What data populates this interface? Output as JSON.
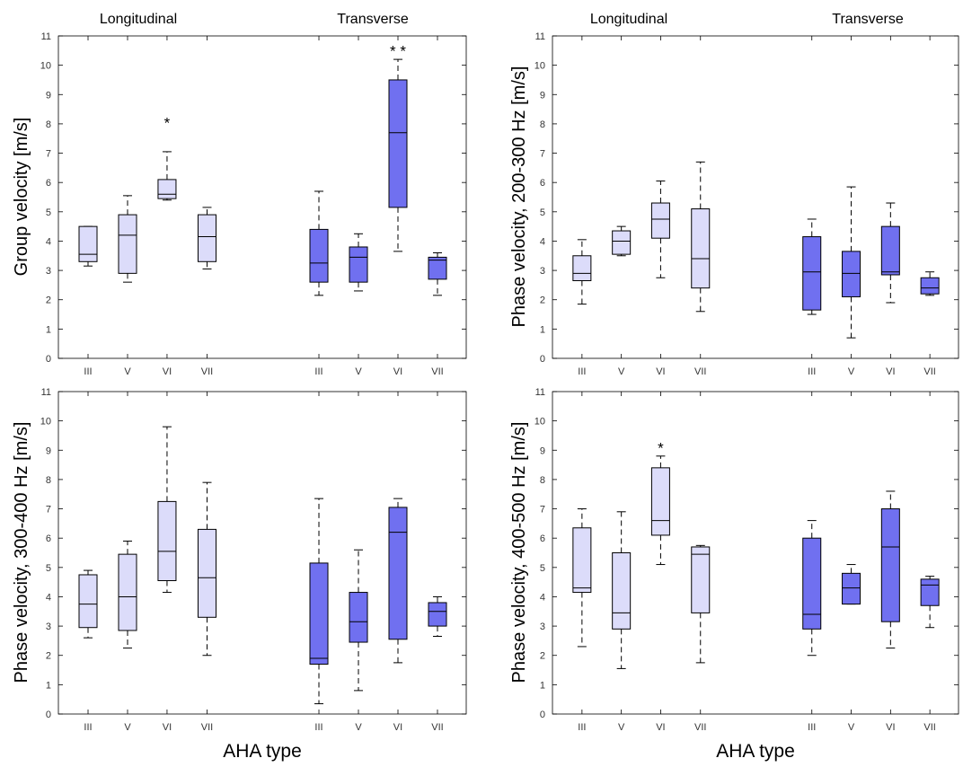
{
  "figure": {
    "group_labels": [
      "Longitudinal",
      "Transverse"
    ],
    "colors": {
      "longitudinal_fill": "#dcdcfa",
      "transverse_fill": "#7070f0",
      "stroke": "#000000"
    }
  },
  "chart_data": [
    {
      "type": "box",
      "ylabel": "Group velocity [m/s]",
      "xlabel": "",
      "ylim": [
        0,
        11
      ],
      "yticks": [
        0,
        1,
        2,
        3,
        4,
        5,
        6,
        7,
        8,
        9,
        10,
        11
      ],
      "categories": [
        "III",
        "V",
        "VI",
        "VII",
        "III",
        "V",
        "VI",
        "VII"
      ],
      "groups": [
        "Longitudinal",
        "Longitudinal",
        "Longitudinal",
        "Longitudinal",
        "Transverse",
        "Transverse",
        "Transverse",
        "Transverse"
      ],
      "boxes": [
        {
          "min": 3.15,
          "q1": 3.3,
          "median": 3.55,
          "q3": 4.5,
          "max": 4.5
        },
        {
          "min": 2.6,
          "q1": 2.9,
          "median": 4.2,
          "q3": 4.9,
          "max": 5.55
        },
        {
          "min": 5.4,
          "q1": 5.45,
          "median": 5.6,
          "q3": 6.1,
          "max": 7.05
        },
        {
          "min": 3.05,
          "q1": 3.3,
          "median": 4.15,
          "q3": 4.9,
          "max": 5.15
        },
        {
          "min": 2.15,
          "q1": 2.6,
          "median": 3.25,
          "q3": 4.4,
          "max": 5.7
        },
        {
          "min": 2.3,
          "q1": 2.6,
          "median": 3.45,
          "q3": 3.8,
          "max": 4.25
        },
        {
          "min": 3.65,
          "q1": 5.15,
          "median": 7.7,
          "q3": 9.5,
          "max": 10.2
        },
        {
          "min": 2.15,
          "q1": 2.7,
          "median": 3.35,
          "q3": 3.45,
          "max": 3.6
        }
      ],
      "annotations": [
        {
          "text": "*",
          "index": 2,
          "y": 8.1
        },
        {
          "text": "* *",
          "index": 6,
          "y": 10.55
        }
      ]
    },
    {
      "type": "box",
      "ylabel": "Phase velocity, 200-300 Hz [m/s]",
      "xlabel": "",
      "ylim": [
        0,
        11
      ],
      "yticks": [
        0,
        1,
        2,
        3,
        4,
        5,
        6,
        7,
        8,
        9,
        10,
        11
      ],
      "categories": [
        "III",
        "V",
        "VI",
        "VII",
        "III",
        "V",
        "VI",
        "VII"
      ],
      "groups": [
        "Longitudinal",
        "Longitudinal",
        "Longitudinal",
        "Longitudinal",
        "Transverse",
        "Transverse",
        "Transverse",
        "Transverse"
      ],
      "boxes": [
        {
          "min": 1.85,
          "q1": 2.65,
          "median": 2.9,
          "q3": 3.5,
          "max": 4.05
        },
        {
          "min": 3.5,
          "q1": 3.55,
          "median": 4.0,
          "q3": 4.35,
          "max": 4.5
        },
        {
          "min": 2.75,
          "q1": 4.1,
          "median": 4.75,
          "q3": 5.3,
          "max": 6.05
        },
        {
          "min": 1.6,
          "q1": 2.4,
          "median": 3.4,
          "q3": 5.1,
          "max": 6.7
        },
        {
          "min": 1.5,
          "q1": 1.65,
          "median": 2.95,
          "q3": 4.15,
          "max": 4.75
        },
        {
          "min": 0.7,
          "q1": 2.1,
          "median": 2.9,
          "q3": 3.65,
          "max": 5.85
        },
        {
          "min": 1.9,
          "q1": 2.85,
          "median": 2.95,
          "q3": 4.5,
          "max": 5.3
        },
        {
          "min": 2.15,
          "q1": 2.2,
          "median": 2.4,
          "q3": 2.75,
          "max": 2.95
        }
      ],
      "annotations": []
    },
    {
      "type": "box",
      "ylabel": "Phase velocity, 300-400 Hz [m/s]",
      "xlabel": "AHA type",
      "ylim": [
        0,
        11
      ],
      "yticks": [
        0,
        1,
        2,
        3,
        4,
        5,
        6,
        7,
        8,
        9,
        10,
        11
      ],
      "categories": [
        "III",
        "V",
        "VI",
        "VII",
        "III",
        "V",
        "VI",
        "VII"
      ],
      "groups": [
        "Longitudinal",
        "Longitudinal",
        "Longitudinal",
        "Longitudinal",
        "Transverse",
        "Transverse",
        "Transverse",
        "Transverse"
      ],
      "boxes": [
        {
          "min": 2.6,
          "q1": 2.95,
          "median": 3.75,
          "q3": 4.75,
          "max": 4.9
        },
        {
          "min": 2.25,
          "q1": 2.85,
          "median": 4.0,
          "q3": 5.45,
          "max": 5.9
        },
        {
          "min": 4.15,
          "q1": 4.55,
          "median": 5.55,
          "q3": 7.25,
          "max": 9.8
        },
        {
          "min": 2.0,
          "q1": 3.3,
          "median": 4.65,
          "q3": 6.3,
          "max": 7.9
        },
        {
          "min": 0.35,
          "q1": 1.7,
          "median": 1.9,
          "q3": 5.15,
          "max": 7.35
        },
        {
          "min": 0.8,
          "q1": 2.45,
          "median": 3.15,
          "q3": 4.15,
          "max": 5.6
        },
        {
          "min": 1.75,
          "q1": 2.55,
          "median": 6.2,
          "q3": 7.05,
          "max": 7.35
        },
        {
          "min": 2.65,
          "q1": 3.0,
          "median": 3.5,
          "q3": 3.8,
          "max": 4.0
        }
      ],
      "annotations": []
    },
    {
      "type": "box",
      "ylabel": "Phase velocity, 400-500 Hz [m/s]",
      "xlabel": "AHA type",
      "ylim": [
        0,
        11
      ],
      "yticks": [
        0,
        1,
        2,
        3,
        4,
        5,
        6,
        7,
        8,
        9,
        10,
        11
      ],
      "categories": [
        "III",
        "V",
        "VI",
        "VII",
        "III",
        "V",
        "VI",
        "VII"
      ],
      "groups": [
        "Longitudinal",
        "Longitudinal",
        "Longitudinal",
        "Longitudinal",
        "Transverse",
        "Transverse",
        "Transverse",
        "Transverse"
      ],
      "boxes": [
        {
          "min": 2.3,
          "q1": 4.15,
          "median": 4.3,
          "q3": 6.35,
          "max": 7.0
        },
        {
          "min": 1.55,
          "q1": 2.9,
          "median": 3.45,
          "q3": 5.5,
          "max": 6.9
        },
        {
          "min": 5.1,
          "q1": 6.1,
          "median": 6.6,
          "q3": 8.4,
          "max": 8.8
        },
        {
          "min": 1.75,
          "q1": 3.45,
          "median": 5.45,
          "q3": 5.7,
          "max": 5.75
        },
        {
          "min": 2.0,
          "q1": 2.9,
          "median": 3.4,
          "q3": 6.0,
          "max": 6.6
        },
        {
          "min": 3.75,
          "q1": 3.75,
          "median": 4.3,
          "q3": 4.8,
          "max": 5.1
        },
        {
          "min": 2.25,
          "q1": 3.15,
          "median": 5.7,
          "q3": 7.0,
          "max": 7.6
        },
        {
          "min": 2.95,
          "q1": 3.7,
          "median": 4.4,
          "q3": 4.6,
          "max": 4.7
        }
      ],
      "annotations": [
        {
          "text": "*",
          "index": 2,
          "y": 9.15
        }
      ]
    }
  ]
}
